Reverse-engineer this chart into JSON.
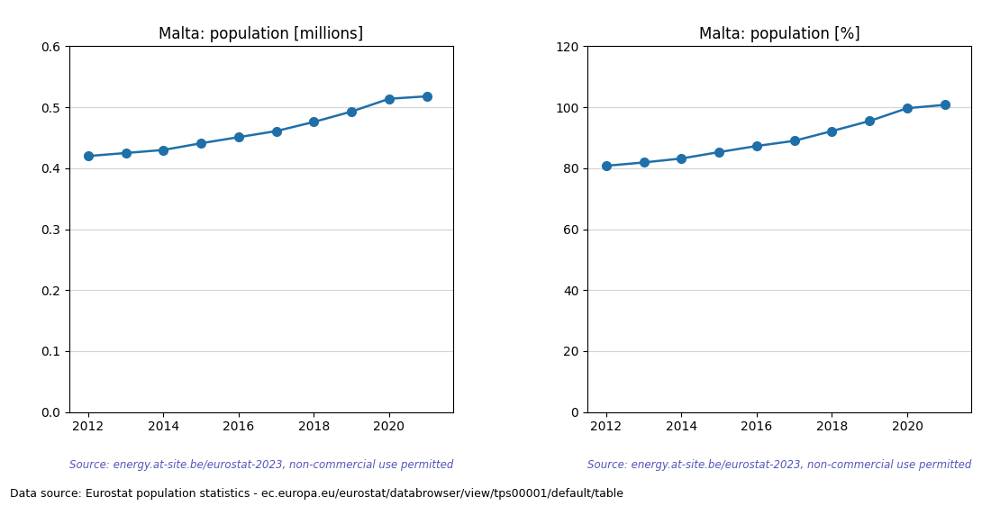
{
  "years": [
    2012,
    2013,
    2014,
    2015,
    2016,
    2017,
    2018,
    2019,
    2020,
    2021
  ],
  "pop_millions": [
    0.42,
    0.425,
    0.43,
    0.441,
    0.451,
    0.461,
    0.476,
    0.493,
    0.514,
    0.518
  ],
  "pop_percent": [
    80.8,
    81.9,
    83.2,
    85.3,
    87.3,
    89.0,
    92.2,
    95.5,
    99.7,
    100.8
  ],
  "title_left": "Malta: population [millions]",
  "title_right": "Malta: population [%]",
  "source_text": "Source: energy.at-site.be/eurostat-2023, non-commercial use permitted",
  "footer_text": "Data source: Eurostat population statistics - ec.europa.eu/eurostat/databrowser/view/tps00001/default/table",
  "line_color": "#1f6fa8",
  "source_color": "#5555bb",
  "footer_color": "#000000",
  "ylim_left": [
    0.0,
    0.6
  ],
  "ylim_right": [
    0,
    120
  ],
  "yticks_left": [
    0.0,
    0.1,
    0.2,
    0.3,
    0.4,
    0.5,
    0.6
  ],
  "yticks_right": [
    0,
    20,
    40,
    60,
    80,
    100,
    120
  ],
  "xticks": [
    2012,
    2014,
    2016,
    2018,
    2020
  ],
  "marker_size": 7,
  "line_width": 1.8,
  "background_color": "#ffffff"
}
